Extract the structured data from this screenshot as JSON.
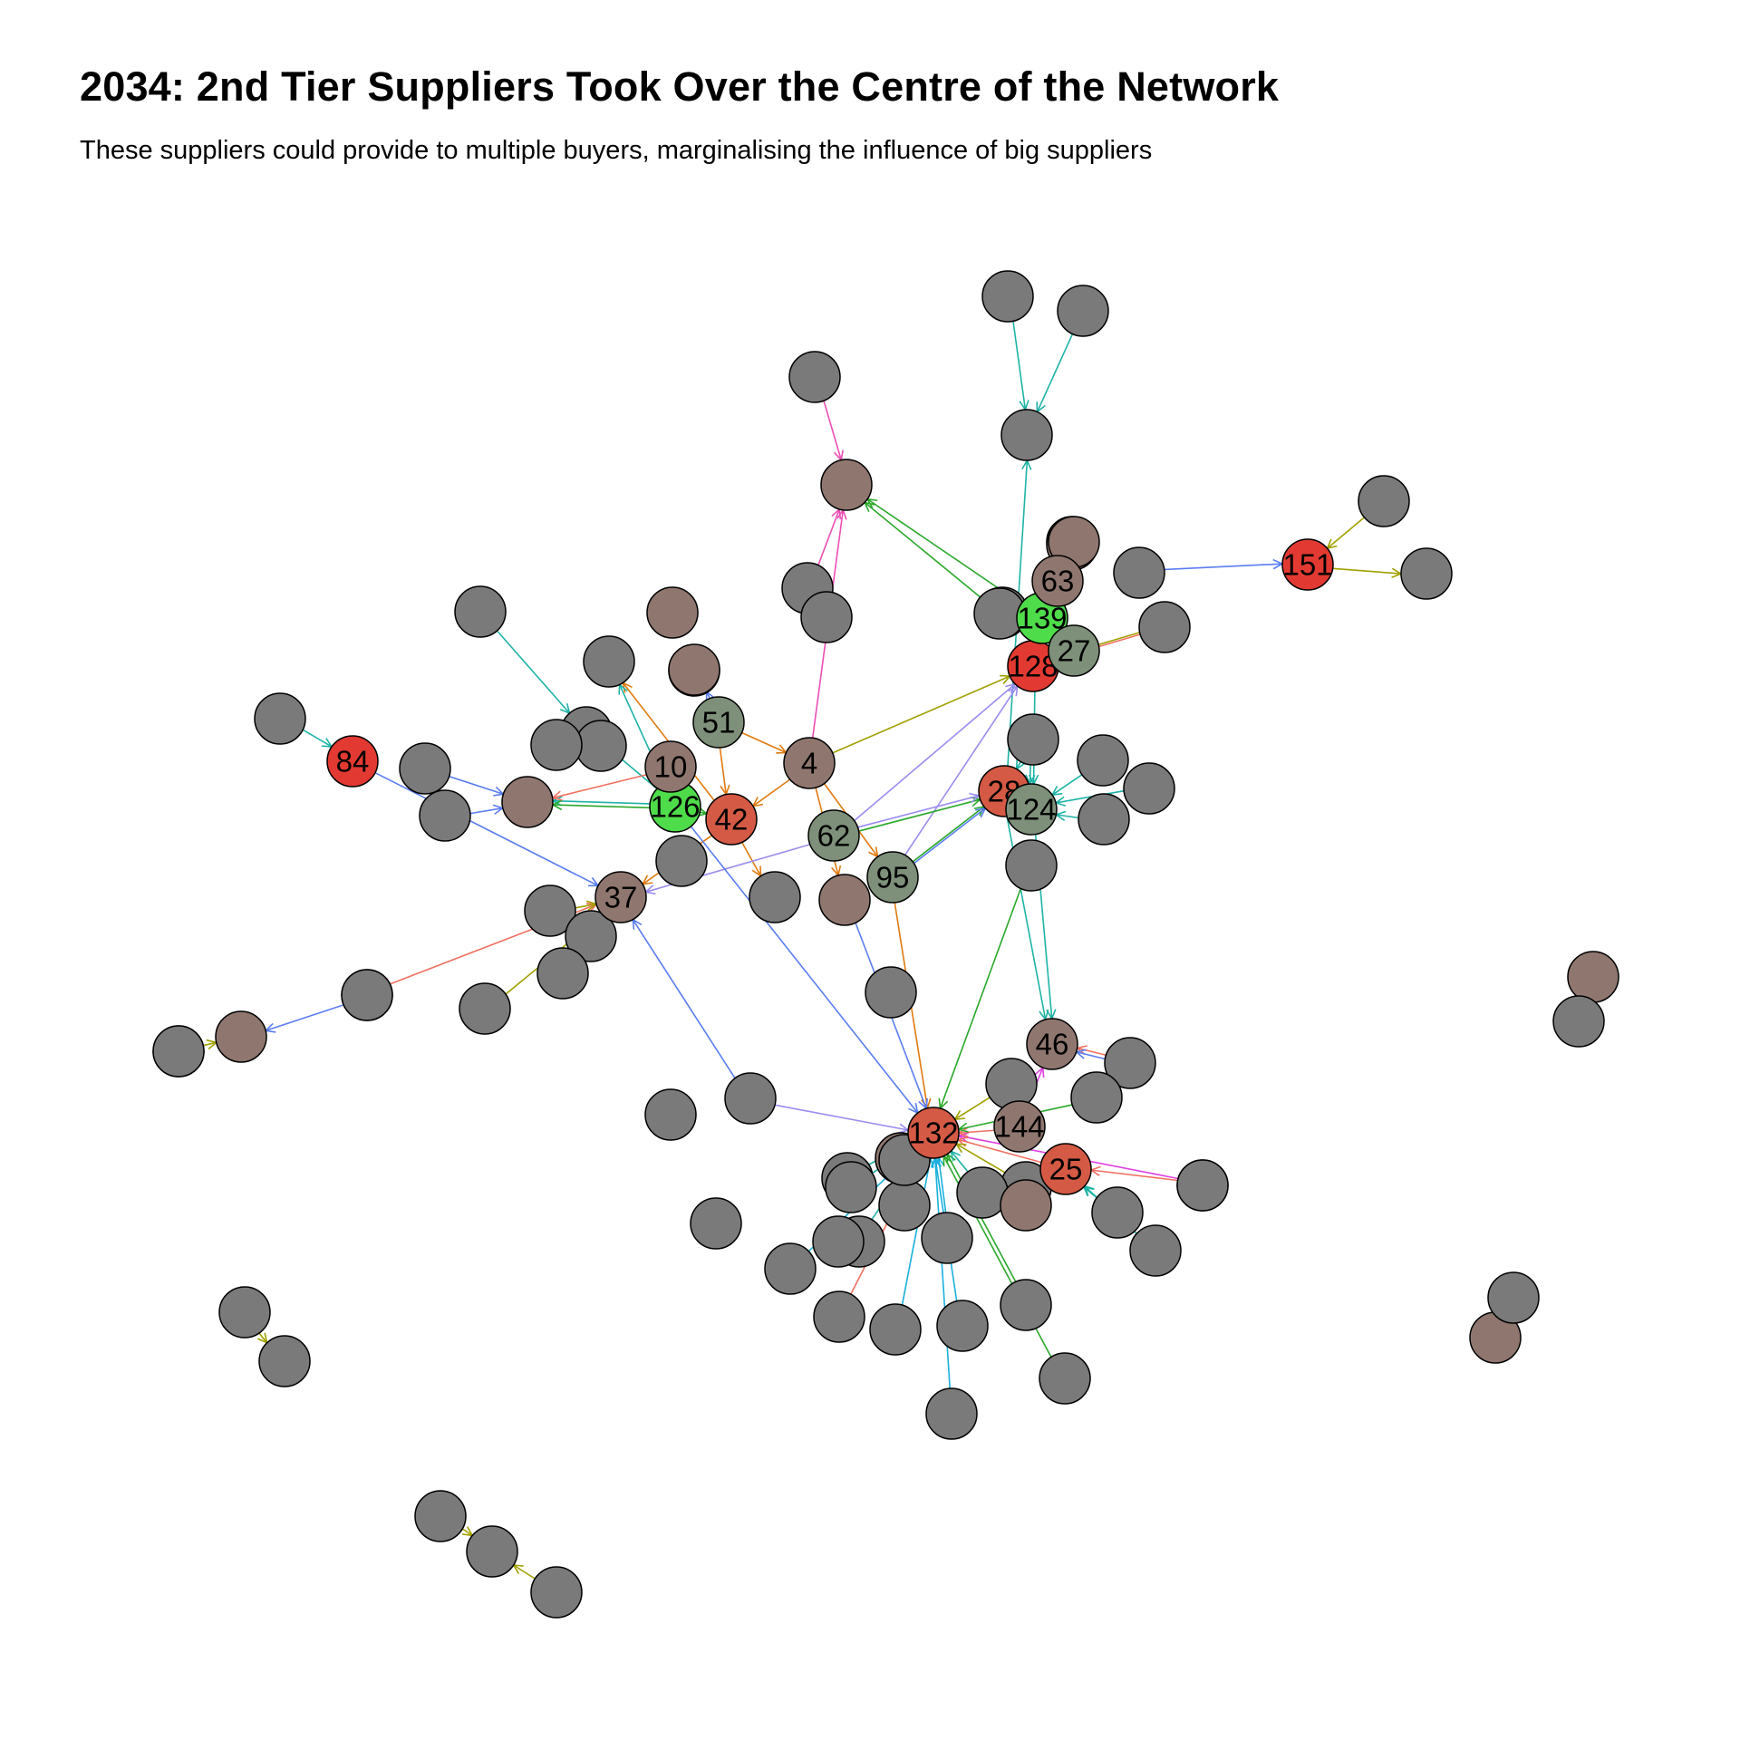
{
  "title": "2034: 2nd Tier Suppliers Took Over the  Centre of the Network",
  "subtitle": "These suppliers could provide to multiple buyers, marginalising the influence of big suppliers",
  "colors": {
    "node_gray": "#7a7a7a",
    "node_brown": "#8f7770",
    "node_sage": "#7e907a",
    "node_red": "#e23a32",
    "node_orangered": "#d45a45",
    "node_green": "#4fdc4a",
    "edge_teal": "#1fb3a6",
    "edge_orange": "#e07a10",
    "edge_pink": "#ec4fb4",
    "edge_green": "#2aa82a",
    "edge_olive": "#a0a000",
    "edge_blue": "#5a7df0",
    "edge_lavender": "#9a8cf0",
    "edge_cyan": "#1ab0dc",
    "edge_magenta": "#e040e0",
    "edge_salmon": "#f07060"
  },
  "nodes": [
    {
      "id": "84",
      "label": "84",
      "role": "red"
    },
    {
      "id": "151",
      "label": "151",
      "role": "red"
    },
    {
      "id": "128",
      "label": "128",
      "role": "red"
    },
    {
      "id": "28",
      "label": "28",
      "role": "orangered"
    },
    {
      "id": "42",
      "label": "42",
      "role": "orangered"
    },
    {
      "id": "132",
      "label": "132",
      "role": "orangered"
    },
    {
      "id": "25",
      "label": "25",
      "role": "orangered"
    },
    {
      "id": "126",
      "label": "126",
      "role": "green"
    },
    {
      "id": "139",
      "label": "139",
      "role": "green"
    },
    {
      "id": "51",
      "label": "51",
      "role": "sage"
    },
    {
      "id": "62",
      "label": "62",
      "role": "sage"
    },
    {
      "id": "95",
      "label": "95",
      "role": "sage"
    },
    {
      "id": "124",
      "label": "124",
      "role": "sage"
    },
    {
      "id": "27",
      "label": "27",
      "role": "sage"
    },
    {
      "id": "10",
      "label": "10",
      "role": "brown"
    },
    {
      "id": "4",
      "label": "4",
      "role": "brown"
    },
    {
      "id": "37",
      "label": "37",
      "role": "brown"
    },
    {
      "id": "63",
      "label": "63",
      "role": "brown"
    },
    {
      "id": "46",
      "label": "46",
      "role": "brown"
    },
    {
      "id": "144",
      "label": "144",
      "role": "brown"
    },
    {
      "id": "g1",
      "label": "",
      "role": "gray"
    },
    {
      "id": "g2",
      "label": "",
      "role": "gray"
    },
    {
      "id": "g3",
      "label": "",
      "role": "gray"
    },
    {
      "id": "g4",
      "label": "",
      "role": "gray"
    },
    {
      "id": "b5",
      "label": "",
      "role": "brown"
    },
    {
      "id": "g6",
      "label": "",
      "role": "gray"
    },
    {
      "id": "b7",
      "label": "",
      "role": "brown"
    },
    {
      "id": "g8",
      "label": "",
      "role": "gray"
    },
    {
      "id": "g9",
      "label": "",
      "role": "gray"
    },
    {
      "id": "g10",
      "label": "",
      "role": "gray"
    },
    {
      "id": "g11",
      "label": "",
      "role": "gray"
    },
    {
      "id": "g12",
      "label": "",
      "role": "gray"
    },
    {
      "id": "g13",
      "label": "",
      "role": "gray"
    },
    {
      "id": "b14",
      "label": "",
      "role": "brown"
    },
    {
      "id": "g15",
      "label": "",
      "role": "gray"
    },
    {
      "id": "b16",
      "label": "",
      "role": "brown"
    },
    {
      "id": "g17",
      "label": "",
      "role": "gray"
    },
    {
      "id": "g18",
      "label": "",
      "role": "gray"
    },
    {
      "id": "g19",
      "label": "",
      "role": "gray"
    },
    {
      "id": "b20",
      "label": "",
      "role": "brown"
    },
    {
      "id": "b21",
      "label": "",
      "role": "brown"
    },
    {
      "id": "g22",
      "label": "",
      "role": "gray"
    },
    {
      "id": "g23",
      "label": "",
      "role": "gray"
    },
    {
      "id": "b24",
      "label": "",
      "role": "brown"
    },
    {
      "id": "g25",
      "label": "",
      "role": "gray"
    },
    {
      "id": "g26",
      "label": "",
      "role": "gray"
    },
    {
      "id": "g27",
      "label": "",
      "role": "gray"
    },
    {
      "id": "b28",
      "label": "",
      "role": "brown"
    },
    {
      "id": "g29",
      "label": "",
      "role": "gray"
    },
    {
      "id": "g30",
      "label": "",
      "role": "gray"
    },
    {
      "id": "g31",
      "label": "",
      "role": "gray"
    },
    {
      "id": "g32",
      "label": "",
      "role": "gray"
    },
    {
      "id": "g33",
      "label": "",
      "role": "gray"
    },
    {
      "id": "g34",
      "label": "",
      "role": "gray"
    },
    {
      "id": "g35",
      "label": "",
      "role": "gray"
    },
    {
      "id": "g36",
      "label": "",
      "role": "gray"
    },
    {
      "id": "g37",
      "label": "",
      "role": "gray"
    },
    {
      "id": "g38",
      "label": "",
      "role": "gray"
    },
    {
      "id": "g39",
      "label": "",
      "role": "gray"
    },
    {
      "id": "g40",
      "label": "",
      "role": "gray"
    },
    {
      "id": "b41",
      "label": "",
      "role": "brown"
    },
    {
      "id": "g42",
      "label": "",
      "role": "gray"
    },
    {
      "id": "g43",
      "label": "",
      "role": "gray"
    },
    {
      "id": "g44",
      "label": "",
      "role": "gray"
    },
    {
      "id": "g45",
      "label": "",
      "role": "gray"
    },
    {
      "id": "g46",
      "label": "",
      "role": "gray"
    },
    {
      "id": "g47",
      "label": "",
      "role": "gray"
    },
    {
      "id": "g48",
      "label": "",
      "role": "gray"
    },
    {
      "id": "g49",
      "label": "",
      "role": "gray"
    },
    {
      "id": "g50",
      "label": "",
      "role": "gray"
    },
    {
      "id": "g51",
      "label": "",
      "role": "gray"
    },
    {
      "id": "g52",
      "label": "",
      "role": "gray"
    },
    {
      "id": "g53",
      "label": "",
      "role": "gray"
    },
    {
      "id": "g54",
      "label": "",
      "role": "gray"
    },
    {
      "id": "g55",
      "label": "",
      "role": "gray"
    },
    {
      "id": "g56",
      "label": "",
      "role": "gray"
    },
    {
      "id": "g57",
      "label": "",
      "role": "gray"
    },
    {
      "id": "g58",
      "label": "",
      "role": "gray"
    },
    {
      "id": "g59",
      "label": "",
      "role": "gray"
    },
    {
      "id": "g60",
      "label": "",
      "role": "gray"
    },
    {
      "id": "g61",
      "label": "",
      "role": "gray"
    },
    {
      "id": "g62",
      "label": "",
      "role": "gray"
    },
    {
      "id": "g63",
      "label": "",
      "role": "gray"
    },
    {
      "id": "g64",
      "label": "",
      "role": "gray"
    },
    {
      "id": "b65",
      "label": "",
      "role": "brown"
    },
    {
      "id": "g66",
      "label": "",
      "role": "gray"
    },
    {
      "id": "g67",
      "label": "",
      "role": "gray"
    },
    {
      "id": "g68",
      "label": "",
      "role": "gray"
    },
    {
      "id": "g69",
      "label": "",
      "role": "gray"
    },
    {
      "id": "g70",
      "label": "",
      "role": "gray"
    },
    {
      "id": "g71",
      "label": "",
      "role": "gray"
    },
    {
      "id": "g72",
      "label": "",
      "role": "gray"
    },
    {
      "id": "g73",
      "label": "",
      "role": "gray"
    },
    {
      "id": "g74",
      "label": "",
      "role": "gray"
    },
    {
      "id": "b75",
      "label": "",
      "role": "brown"
    },
    {
      "id": "g76",
      "label": "",
      "role": "gray"
    },
    {
      "id": "b77",
      "label": "",
      "role": "brown"
    },
    {
      "id": "g78",
      "label": "",
      "role": "gray"
    },
    {
      "id": "b79",
      "label": "",
      "role": "brown"
    },
    {
      "id": "g80",
      "label": "",
      "role": "gray"
    },
    {
      "id": "g81",
      "label": "",
      "role": "gray"
    },
    {
      "id": "b82",
      "label": "",
      "role": "brown"
    },
    {
      "id": "g83",
      "label": "",
      "role": "gray"
    }
  ],
  "edges": [
    {
      "from": "g1",
      "to": "g3",
      "color": "edge_teal"
    },
    {
      "from": "g2",
      "to": "g3",
      "color": "edge_teal"
    },
    {
      "from": "28",
      "to": "g3",
      "color": "edge_teal"
    },
    {
      "from": "g4",
      "to": "b5",
      "color": "edge_pink"
    },
    {
      "from": "4",
      "to": "b5",
      "color": "edge_pink"
    },
    {
      "from": "g8",
      "to": "b5",
      "color": "edge_pink"
    },
    {
      "from": "g6",
      "to": "b5",
      "color": "edge_green"
    },
    {
      "from": "g9",
      "to": "151",
      "color": "edge_olive"
    },
    {
      "from": "151",
      "to": "g10",
      "color": "edge_olive"
    },
    {
      "from": "g11",
      "to": "151",
      "color": "edge_blue"
    },
    {
      "from": "g12",
      "to": "128",
      "color": "edge_salmon"
    },
    {
      "from": "g12",
      "to": "128",
      "color": "edge_olive"
    },
    {
      "from": "g15",
      "to": "27",
      "color": "edge_teal"
    },
    {
      "from": "4",
      "to": "128",
      "color": "edge_olive"
    },
    {
      "from": "62",
      "to": "128",
      "color": "edge_lavender"
    },
    {
      "from": "95",
      "to": "128",
      "color": "edge_lavender"
    },
    {
      "from": "g17",
      "to": "g18",
      "color": "edge_teal"
    },
    {
      "from": "126",
      "to": "g18",
      "color": "edge_teal"
    },
    {
      "from": "42",
      "to": "g19",
      "color": "edge_orange"
    },
    {
      "from": "126",
      "to": "g19",
      "color": "edge_teal"
    },
    {
      "from": "51",
      "to": "b21",
      "color": "edge_blue"
    },
    {
      "from": "g22",
      "to": "84",
      "color": "edge_teal"
    },
    {
      "from": "84",
      "to": "37",
      "color": "edge_blue"
    },
    {
      "from": "126",
      "to": "b24",
      "color": "edge_teal"
    },
    {
      "from": "126",
      "to": "b24",
      "color": "edge_green"
    },
    {
      "from": "g25",
      "to": "b24",
      "color": "edge_blue"
    },
    {
      "from": "g26",
      "to": "b24",
      "color": "edge_blue"
    },
    {
      "from": "10",
      "to": "b24",
      "color": "edge_salmon"
    },
    {
      "from": "51",
      "to": "4",
      "color": "edge_orange"
    },
    {
      "from": "51",
      "to": "42",
      "color": "edge_orange"
    },
    {
      "from": "4",
      "to": "42",
      "color": "edge_orange"
    },
    {
      "from": "4",
      "to": "b28",
      "color": "edge_orange"
    },
    {
      "from": "42",
      "to": "g32",
      "color": "edge_orange"
    },
    {
      "from": "42",
      "to": "37",
      "color": "edge_orange"
    },
    {
      "from": "126",
      "to": "42",
      "color": "edge_green"
    },
    {
      "from": "62",
      "to": "28",
      "color": "edge_green"
    },
    {
      "from": "62",
      "to": "28",
      "color": "edge_lavender"
    },
    {
      "from": "95",
      "to": "28",
      "color": "edge_green"
    },
    {
      "from": "95",
      "to": "28",
      "color": "edge_blue"
    },
    {
      "from": "62",
      "to": "37",
      "color": "edge_lavender"
    },
    {
      "from": "4",
      "to": "95",
      "color": "edge_orange"
    },
    {
      "from": "95",
      "to": "132",
      "color": "edge_orange"
    },
    {
      "from": "b28",
      "to": "132",
      "color": "edge_blue"
    },
    {
      "from": "126",
      "to": "132",
      "color": "edge_blue"
    },
    {
      "from": "g33",
      "to": "132",
      "color": "edge_lavender"
    },
    {
      "from": "g33",
      "to": "37",
      "color": "edge_blue"
    },
    {
      "from": "g34",
      "to": "37",
      "color": "edge_olive"
    },
    {
      "from": "g35",
      "to": "37",
      "color": "edge_olive"
    },
    {
      "from": "g36",
      "to": "37",
      "color": "edge_salmon"
    },
    {
      "from": "g30",
      "to": "37",
      "color": "edge_olive"
    },
    {
      "from": "g29",
      "to": "37",
      "color": "edge_olive"
    },
    {
      "from": "g38",
      "to": "b41",
      "color": "edge_blue"
    },
    {
      "from": "g39",
      "to": "b41",
      "color": "edge_olive"
    },
    {
      "from": "28",
      "to": "46",
      "color": "edge_teal"
    },
    {
      "from": "124",
      "to": "46",
      "color": "edge_teal"
    },
    {
      "from": "g43",
      "to": "124",
      "color": "edge_teal"
    },
    {
      "from": "g44",
      "to": "124",
      "color": "edge_teal"
    },
    {
      "from": "g45",
      "to": "124",
      "color": "edge_teal"
    },
    {
      "from": "g42",
      "to": "28",
      "color": "edge_teal"
    },
    {
      "from": "g47",
      "to": "46",
      "color": "edge_salmon"
    },
    {
      "from": "g47",
      "to": "46",
      "color": "edge_blue"
    },
    {
      "from": "144",
      "to": "46",
      "color": "edge_magenta"
    },
    {
      "from": "g48",
      "to": "25",
      "color": "edge_salmon"
    },
    {
      "from": "g49",
      "to": "25",
      "color": "edge_teal"
    },
    {
      "from": "g50",
      "to": "25",
      "color": "edge_teal"
    },
    {
      "from": "g51",
      "to": "132",
      "color": "edge_magenta"
    },
    {
      "from": "144",
      "to": "132",
      "color": "edge_salmon"
    },
    {
      "from": "25",
      "to": "132",
      "color": "edge_salmon"
    },
    {
      "from": "g46",
      "to": "132",
      "color": "edge_green"
    },
    {
      "from": "g52",
      "to": "132",
      "color": "edge_green"
    },
    {
      "from": "g53",
      "to": "132",
      "color": "edge_olive"
    },
    {
      "from": "g54",
      "to": "132",
      "color": "edge_olive"
    },
    {
      "from": "g55",
      "to": "132",
      "color": "edge_teal"
    },
    {
      "from": "g56",
      "to": "132",
      "color": "edge_cyan"
    },
    {
      "from": "g57",
      "to": "132",
      "color": "edge_cyan"
    },
    {
      "from": "g58",
      "to": "132",
      "color": "edge_teal"
    },
    {
      "from": "g59",
      "to": "132",
      "color": "edge_salmon"
    },
    {
      "from": "g60",
      "to": "132",
      "color": "edge_cyan"
    },
    {
      "from": "g61",
      "to": "132",
      "color": "edge_cyan"
    },
    {
      "from": "g62",
      "to": "132",
      "color": "edge_cyan"
    },
    {
      "from": "g63",
      "to": "132",
      "color": "edge_green"
    },
    {
      "from": "g64",
      "to": "132",
      "color": "edge_green"
    },
    {
      "from": "g66",
      "to": "132",
      "color": "edge_cyan"
    },
    {
      "from": "g67",
      "to": "132",
      "color": "edge_teal"
    },
    {
      "from": "g68",
      "to": "132",
      "color": "edge_teal"
    },
    {
      "from": "g69",
      "to": "132",
      "color": "edge_teal"
    },
    {
      "from": "g70",
      "to": "g71",
      "color": "edge_olive"
    },
    {
      "from": "g72",
      "to": "g73",
      "color": "edge_olive"
    },
    {
      "from": "g74",
      "to": "g73",
      "color": "edge_olive"
    },
    {
      "from": "b75",
      "to": "g76",
      "color": "edge_teal"
    },
    {
      "from": "b77",
      "to": "g78",
      "color": "edge_teal"
    },
    {
      "from": "139",
      "to": "b5",
      "color": "edge_green"
    },
    {
      "from": "g16",
      "to": "124",
      "color": "edge_teal"
    },
    {
      "from": "128",
      "to": "124",
      "color": "edge_teal"
    }
  ]
}
